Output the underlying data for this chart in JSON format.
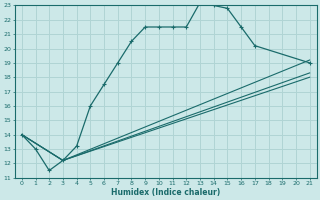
{
  "xlabel": "Humidex (Indice chaleur)",
  "xlim": [
    -0.5,
    21.5
  ],
  "ylim": [
    11,
    23
  ],
  "xticks": [
    0,
    1,
    2,
    3,
    4,
    5,
    6,
    7,
    8,
    9,
    10,
    11,
    12,
    13,
    14,
    15,
    16,
    17,
    18,
    19,
    20,
    21
  ],
  "yticks": [
    11,
    12,
    13,
    14,
    15,
    16,
    17,
    18,
    19,
    20,
    21,
    22,
    23
  ],
  "bg_color": "#cce8e8",
  "line_color": "#1a6b6b",
  "grid_color": "#b0d4d4",
  "line1_x": [
    0,
    1,
    2,
    3,
    4,
    5,
    6,
    7,
    8,
    9,
    10,
    11,
    12,
    13,
    14,
    15,
    16,
    17,
    21
  ],
  "line1_y": [
    14.0,
    13.0,
    11.5,
    12.2,
    13.2,
    16.0,
    17.5,
    19.0,
    20.5,
    21.5,
    21.5,
    21.5,
    21.5,
    23.2,
    23.0,
    22.8,
    21.5,
    20.2,
    19.0
  ],
  "line2_x": [
    0,
    3,
    21
  ],
  "line2_y": [
    14.0,
    12.2,
    19.2
  ],
  "line3_x": [
    0,
    3,
    21
  ],
  "line3_y": [
    14.0,
    12.2,
    18.3
  ],
  "line4_x": [
    0,
    3,
    21
  ],
  "line4_y": [
    14.0,
    12.2,
    18.0
  ]
}
